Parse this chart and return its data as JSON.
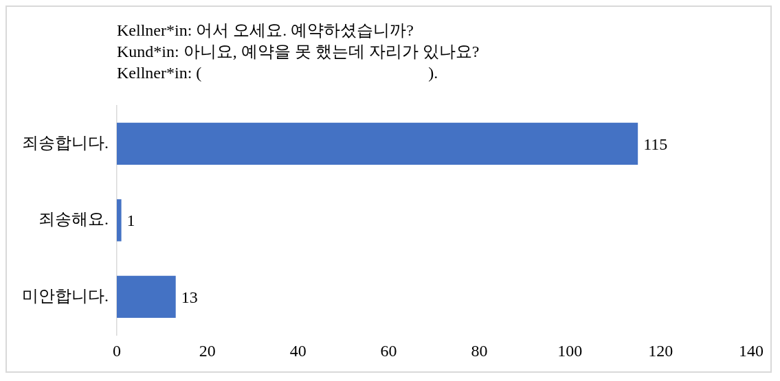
{
  "chart_data": {
    "type": "bar",
    "orientation": "horizontal",
    "title": "Kellner*in: 어서 오세요. 예약하셨습니까?\nKund*in: 아니요, 예약을 못 했는데 자리가 있나요?\nKellner*in: (                                                       ).",
    "categories": [
      "죄송합니다.",
      "죄송해요.",
      "미안합니다."
    ],
    "values": [
      115,
      1,
      13
    ],
    "color": "#4472c4",
    "xlim": [
      0,
      140
    ],
    "xticks": [
      0,
      20,
      40,
      60,
      80,
      100,
      120,
      140
    ],
    "grid": false,
    "legend": false,
    "data_labels": true
  }
}
